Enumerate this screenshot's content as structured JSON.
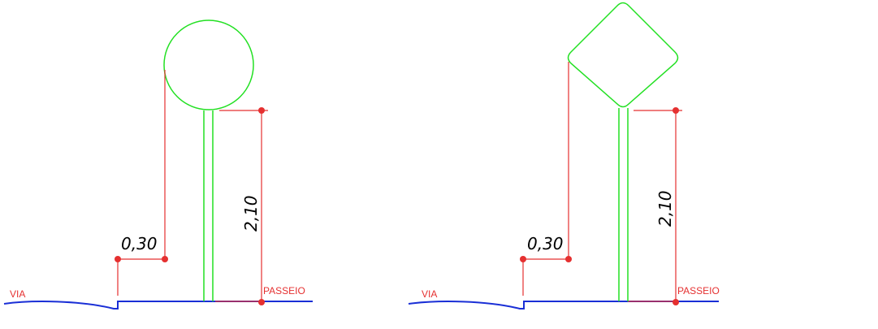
{
  "colors": {
    "sign": "#22e022",
    "dimension": "#e53030",
    "ground": "#1a2fd6",
    "background": "#ffffff"
  },
  "figures": [
    {
      "sign_shape": "circle",
      "offset_label": "0,30",
      "height_label": "2,10",
      "road_label": "VIA",
      "sidewalk_label": "PASSEIO"
    },
    {
      "sign_shape": "diamond",
      "offset_label": "0,30",
      "height_label": "2,10",
      "road_label": "VIA",
      "sidewalk_label": "PASSEIO"
    }
  ]
}
